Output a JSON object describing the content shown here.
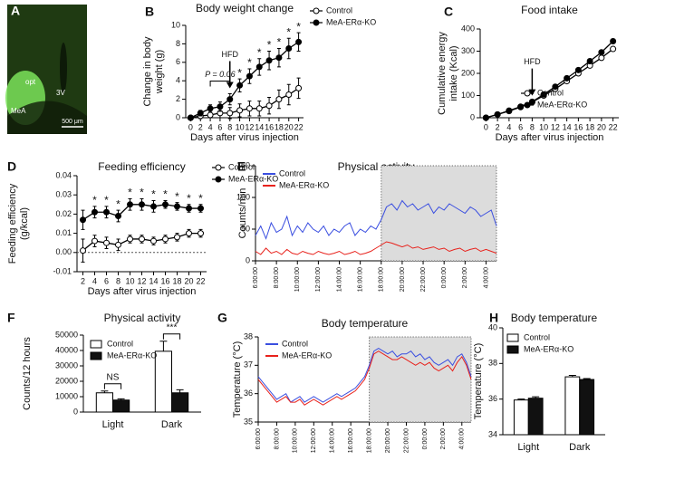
{
  "chart_data": [
    {
      "type": "image",
      "panel": "A",
      "labels": [
        "opt",
        "MeA",
        "3V"
      ],
      "scale_bar": "500 μm"
    },
    {
      "type": "line",
      "panel": "B",
      "title": "Body weight change",
      "xlabel": "Days after virus injection",
      "ylabel": [
        "Change in body",
        "weight (g)"
      ],
      "x": [
        0,
        2,
        4,
        6,
        8,
        10,
        12,
        14,
        16,
        18,
        20,
        22
      ],
      "xlim": [
        -1,
        23
      ],
      "xticks": [
        0,
        2,
        4,
        6,
        8,
        10,
        12,
        14,
        16,
        18,
        20,
        22
      ],
      "ylim": [
        0,
        10
      ],
      "yticks": [
        0,
        2,
        4,
        6,
        8,
        10
      ],
      "series": [
        {
          "name": "Control",
          "color": "#000000",
          "marker": "open",
          "values": [
            0,
            0.2,
            0.3,
            0.5,
            0.5,
            0.8,
            1.0,
            1.0,
            1.3,
            2.0,
            2.5,
            3.2
          ],
          "errors": [
            0,
            0.3,
            0.3,
            0.5,
            0.6,
            0.7,
            0.8,
            0.8,
            0.9,
            1.0,
            1.1,
            1.1
          ]
        },
        {
          "name": "MeA-ERα-KO",
          "color": "#000000",
          "marker": "filled",
          "values": [
            0,
            0.5,
            1.0,
            1.2,
            2.0,
            3.5,
            4.5,
            5.5,
            6.2,
            6.5,
            7.5,
            8.2
          ],
          "errors": [
            0,
            0.3,
            0.4,
            0.5,
            0.6,
            0.7,
            0.8,
            0.9,
            1.0,
            1.0,
            1.1,
            1.0
          ]
        }
      ],
      "arrow": {
        "label": "HFD",
        "x": 8
      },
      "bracket": {
        "label": "P = 0.06",
        "x": [
          4,
          8
        ]
      },
      "significance": [
        {
          "x": 10,
          "label": "*"
        },
        {
          "x": 12,
          "label": "*"
        },
        {
          "x": 14,
          "label": "*"
        },
        {
          "x": 16,
          "label": "*"
        },
        {
          "x": 18,
          "label": "*"
        },
        {
          "x": 20,
          "label": "*"
        },
        {
          "x": 22,
          "label": "*"
        }
      ]
    },
    {
      "type": "line",
      "panel": "C",
      "title": "Food intake",
      "xlabel": "Days after virus injection",
      "ylabel": [
        "Cumulative energy",
        "intake (Kcal)"
      ],
      "x": [
        0,
        2,
        4,
        6,
        8,
        10,
        12,
        14,
        16,
        18,
        20,
        22
      ],
      "xlim": [
        -1,
        23
      ],
      "xticks": [
        0,
        2,
        4,
        6,
        8,
        10,
        12,
        14,
        16,
        18,
        20,
        22
      ],
      "ylim": [
        0,
        400
      ],
      "yticks": [
        0,
        100,
        200,
        300,
        400
      ],
      "series": [
        {
          "name": "Control",
          "color": "#000000",
          "marker": "open",
          "values": [
            0,
            15,
            30,
            48,
            70,
            100,
            130,
            165,
            200,
            235,
            270,
            310
          ],
          "errors": [
            0,
            2,
            2,
            3,
            3,
            4,
            5,
            5,
            6,
            7,
            8,
            10
          ]
        },
        {
          "name": "MeA-ERα-KO",
          "color": "#000000",
          "marker": "filled",
          "values": [
            0,
            15,
            32,
            50,
            72,
            105,
            140,
            178,
            215,
            255,
            295,
            345
          ],
          "errors": [
            0,
            2,
            2,
            3,
            3,
            4,
            5,
            5,
            6,
            7,
            8,
            10
          ]
        }
      ],
      "arrow": {
        "label": "HFD",
        "x": 8
      }
    },
    {
      "type": "line",
      "panel": "D",
      "title": "Feeding efficiency",
      "xlabel": "Days after virus injection",
      "ylabel": [
        "Feeding efficiency",
        "(g/kcal)"
      ],
      "x": [
        2,
        4,
        6,
        8,
        10,
        12,
        14,
        16,
        18,
        20,
        22
      ],
      "xlim": [
        1,
        23
      ],
      "xticks": [
        2,
        4,
        6,
        8,
        10,
        12,
        14,
        16,
        18,
        20,
        22
      ],
      "ylim": [
        -0.01,
        0.04
      ],
      "yticks": [
        -0.01,
        {
          "value": 0,
          "label": "0.00"
        },
        0.01,
        0.02,
        0.03,
        0.04
      ],
      "reference_line": 0,
      "series": [
        {
          "name": "Control",
          "color": "#000000",
          "marker": "open",
          "values": [
            0.001,
            0.006,
            0.005,
            0.004,
            0.007,
            0.007,
            0.006,
            0.007,
            0.008,
            0.01,
            0.01
          ],
          "errors": [
            0.006,
            0.003,
            0.003,
            0.003,
            0.002,
            0.002,
            0.002,
            0.002,
            0.002,
            0.002,
            0.002
          ]
        },
        {
          "name": "MeA-ERα-KO",
          "color": "#000000",
          "marker": "filled",
          "values": [
            0.017,
            0.021,
            0.021,
            0.019,
            0.025,
            0.025,
            0.024,
            0.025,
            0.024,
            0.023,
            0.023
          ],
          "errors": [
            0.005,
            0.003,
            0.003,
            0.003,
            0.003,
            0.003,
            0.003,
            0.002,
            0.002,
            0.002,
            0.002
          ]
        }
      ],
      "significance": [
        {
          "x": 4,
          "label": "*"
        },
        {
          "x": 6,
          "label": "*"
        },
        {
          "x": 8,
          "label": "*"
        },
        {
          "x": 10,
          "label": "*"
        },
        {
          "x": 12,
          "label": "*"
        },
        {
          "x": 14,
          "label": "*"
        },
        {
          "x": 16,
          "label": "*"
        },
        {
          "x": 18,
          "label": "*"
        },
        {
          "x": 20,
          "label": "*"
        },
        {
          "x": 22,
          "label": "*"
        }
      ]
    },
    {
      "type": "line",
      "panel": "E",
      "title": "Physical activity",
      "ylabel": "Counts/min",
      "x": [
        6,
        6.5,
        7,
        7.5,
        8,
        8.5,
        9,
        9.5,
        10,
        10.5,
        11,
        11.5,
        12,
        12.5,
        13,
        13.5,
        14,
        14.5,
        15,
        15.5,
        16,
        16.5,
        17,
        17.5,
        18,
        18.5,
        19,
        19.5,
        20,
        20.5,
        21,
        21.5,
        22,
        22.5,
        23,
        23.5,
        24,
        24.5,
        25,
        25.5,
        26,
        26.5,
        27,
        27.5,
        28,
        28.5,
        29
      ],
      "xlim": [
        6,
        29
      ],
      "xticks": [
        {
          "value": 6,
          "label": "6:00:00"
        },
        {
          "value": 8,
          "label": "8:00:00"
        },
        {
          "value": 10,
          "label": "10:00:00"
        },
        {
          "value": 12,
          "label": "12:00:00"
        },
        {
          "value": 14,
          "label": "14:00:00"
        },
        {
          "value": 16,
          "label": "16:00:00"
        },
        {
          "value": 18,
          "label": "18:00:00"
        },
        {
          "value": 20,
          "label": "20:00:00"
        },
        {
          "value": 22,
          "label": "22:00:00"
        },
        {
          "value": 24,
          "label": "0:00:00"
        },
        {
          "value": 26,
          "label": "2:00:00"
        },
        {
          "value": 28,
          "label": "4:00:00"
        }
      ],
      "ylim": [
        0,
        150
      ],
      "yticks": [
        0,
        50,
        100,
        150
      ],
      "night": [
        18,
        29
      ],
      "series": [
        {
          "name": "Control",
          "color": "#3b4fe0",
          "values": [
            40,
            55,
            35,
            60,
            45,
            50,
            70,
            40,
            55,
            45,
            60,
            50,
            45,
            55,
            40,
            50,
            45,
            55,
            60,
            40,
            50,
            45,
            55,
            50,
            65,
            85,
            90,
            80,
            95,
            85,
            90,
            80,
            85,
            90,
            75,
            85,
            80,
            90,
            85,
            80,
            75,
            85,
            80,
            70,
            75,
            80,
            55
          ]
        },
        {
          "name": "MeA-ERα-KO",
          "color": "#e8221c",
          "values": [
            15,
            10,
            20,
            12,
            15,
            10,
            18,
            12,
            10,
            15,
            12,
            10,
            15,
            12,
            10,
            12,
            15,
            10,
            12,
            15,
            10,
            12,
            15,
            20,
            25,
            30,
            28,
            25,
            22,
            25,
            20,
            22,
            18,
            20,
            22,
            18,
            20,
            15,
            18,
            20,
            15,
            18,
            20,
            15,
            18,
            15,
            12
          ]
        }
      ]
    },
    {
      "type": "bar",
      "panel": "F",
      "title": "Physical activity",
      "ylabel": "Counts/12 hours",
      "categories": [
        "Light",
        "Dark"
      ],
      "ylim": [
        0,
        50000
      ],
      "yticks": [
        0,
        10000,
        20000,
        30000,
        40000,
        50000
      ],
      "series": [
        {
          "name": "Control",
          "color": "#ffffff",
          "values": [
            12500,
            39500
          ],
          "errors": [
            1200,
            6500
          ]
        },
        {
          "name": "MeA-ERα-KO",
          "color": "#111111",
          "values": [
            7800,
            12500
          ],
          "errors": [
            800,
            2000
          ]
        }
      ],
      "bracket_labels": [
        "NS",
        "***"
      ]
    },
    {
      "type": "line",
      "panel": "G",
      "title": "Body temperature",
      "ylabel": "Temperature (°C)",
      "x": [
        6,
        6.5,
        7,
        7.5,
        8,
        8.5,
        9,
        9.5,
        10,
        10.5,
        11,
        11.5,
        12,
        12.5,
        13,
        13.5,
        14,
        14.5,
        15,
        15.5,
        16,
        16.5,
        17,
        17.5,
        18,
        18.5,
        19,
        19.5,
        20,
        20.5,
        21,
        21.5,
        22,
        22.5,
        23,
        23.5,
        24,
        24.5,
        25,
        25.5,
        26,
        26.5,
        27,
        27.5,
        28,
        28.5,
        29
      ],
      "xlim": [
        6,
        29
      ],
      "xticks": [
        {
          "value": 6,
          "label": "6:00:00"
        },
        {
          "value": 8,
          "label": "8:00:00"
        },
        {
          "value": 10,
          "label": "10:00:00"
        },
        {
          "value": 12,
          "label": "12:00:00"
        },
        {
          "value": 14,
          "label": "14:00:00"
        },
        {
          "value": 16,
          "label": "16:00:00"
        },
        {
          "value": 18,
          "label": "18:00:00"
        },
        {
          "value": 20,
          "label": "20:00:00"
        },
        {
          "value": 22,
          "label": "22:00:00"
        },
        {
          "value": 24,
          "label": "0:00:00"
        },
        {
          "value": 26,
          "label": "2:00:00"
        },
        {
          "value": 28,
          "label": "4:00:00"
        }
      ],
      "ylim": [
        35,
        38
      ],
      "yticks": [
        35,
        36,
        37,
        38
      ],
      "night": [
        18,
        29
      ],
      "series": [
        {
          "name": "Control",
          "color": "#3b4fe0",
          "values": [
            36.6,
            36.4,
            36.2,
            36.0,
            35.8,
            35.9,
            36.0,
            35.7,
            35.8,
            35.9,
            35.7,
            35.8,
            35.9,
            35.8,
            35.7,
            35.8,
            35.9,
            36.0,
            35.9,
            36.0,
            36.1,
            36.2,
            36.4,
            36.6,
            37.0,
            37.5,
            37.6,
            37.5,
            37.4,
            37.5,
            37.3,
            37.4,
            37.4,
            37.5,
            37.3,
            37.4,
            37.2,
            37.3,
            37.1,
            37.0,
            37.1,
            37.2,
            37.0,
            37.3,
            37.4,
            37.1,
            36.6
          ]
        },
        {
          "name": "MeA-ERα-KO",
          "color": "#e8221c",
          "values": [
            36.5,
            36.3,
            36.1,
            35.9,
            35.7,
            35.8,
            35.9,
            35.7,
            35.7,
            35.8,
            35.6,
            35.7,
            35.8,
            35.7,
            35.6,
            35.7,
            35.8,
            35.9,
            35.8,
            35.9,
            36.0,
            36.1,
            36.3,
            36.5,
            36.9,
            37.4,
            37.5,
            37.4,
            37.3,
            37.2,
            37.2,
            37.3,
            37.2,
            37.1,
            37.0,
            37.1,
            37.0,
            37.1,
            36.9,
            36.8,
            36.9,
            37.0,
            36.8,
            37.1,
            37.3,
            37.0,
            36.5
          ]
        }
      ]
    },
    {
      "type": "bar",
      "panel": "H",
      "title": "Body temperature",
      "ylabel": "Temperature (°C)",
      "categories": [
        "Light",
        "Dark"
      ],
      "ylim": [
        34,
        40
      ],
      "yticks": [
        34,
        36,
        38,
        40
      ],
      "series": [
        {
          "name": "Control",
          "color": "#ffffff",
          "values": [
            35.95,
            37.25
          ],
          "errors": [
            0.05,
            0.08
          ]
        },
        {
          "name": "MeA-ERα-KO",
          "color": "#111111",
          "values": [
            36.05,
            37.1
          ],
          "errors": [
            0.08,
            0.05
          ]
        }
      ]
    }
  ]
}
